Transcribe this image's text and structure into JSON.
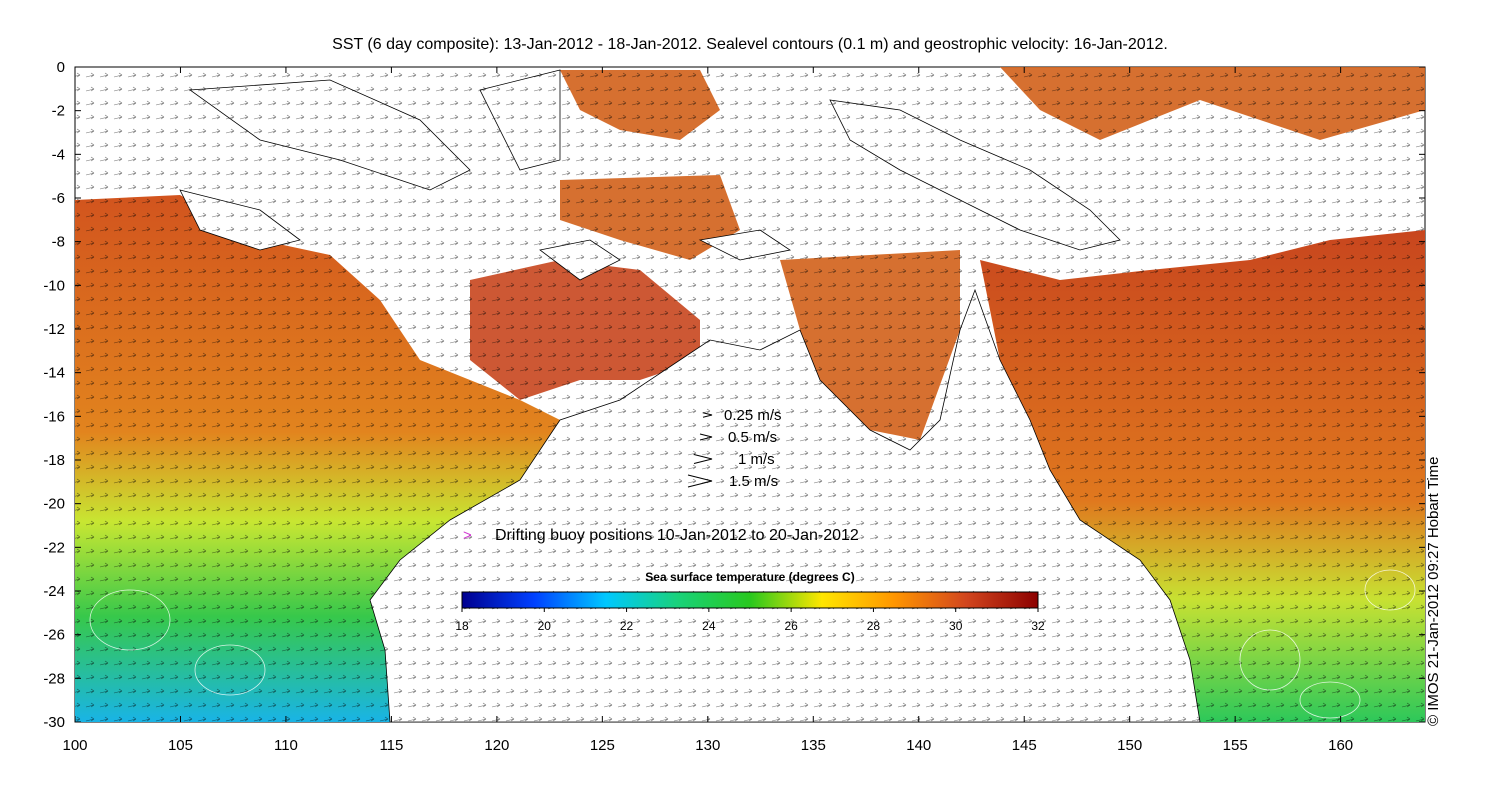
{
  "title": "SST (6 day composite): 13-Jan-2012 - 18-Jan-2012. Sealevel contours (0.1 m) and geostrophic velocity: 16-Jan-2012.",
  "credit": "© IMOS 21-Jan-2012 09:27 Hobart Time",
  "x_ticks": [
    "100",
    "105",
    "110",
    "115",
    "120",
    "125",
    "130",
    "135",
    "140",
    "145",
    "150",
    "155",
    "160"
  ],
  "y_ticks": [
    "0",
    "-2",
    "-4",
    "-6",
    "-8",
    "-10",
    "-12",
    "-14",
    "-16",
    "-18",
    "-20",
    "-22",
    "-24",
    "-26",
    "-28",
    "-30"
  ],
  "velocity_legend": [
    {
      "label": "0.25 m/s",
      "speed": 0.25
    },
    {
      "label": "0.5 m/s",
      "speed": 0.5
    },
    {
      "label": "1 m/s",
      "speed": 1
    },
    {
      "label": "1.5 m/s",
      "speed": 1.5
    }
  ],
  "buoy_legend": {
    "symbol": ">",
    "label": "Drifting buoy positions 10-Jan-2012 to 20-Jan-2012",
    "color": "#d23bd2"
  },
  "colorbar": {
    "title": "Sea surface temperature (degrees C)",
    "min": 18,
    "max": 32,
    "ticks": [
      "18",
      "20",
      "22",
      "24",
      "26",
      "28",
      "30",
      "32"
    ],
    "colors": [
      "#00008f",
      "#0040ff",
      "#00c8ff",
      "#19d27a",
      "#28c81e",
      "#ffe600",
      "#ff9600",
      "#d2461e",
      "#8c0000"
    ]
  },
  "chart_data": {
    "type": "map",
    "xlim": [
      100,
      164
    ],
    "ylim": [
      -30,
      0
    ],
    "xlabel": "",
    "ylabel": "",
    "background": "sea surface temperature field with land masks, sea level contours and geostrophic velocity vectors"
  }
}
